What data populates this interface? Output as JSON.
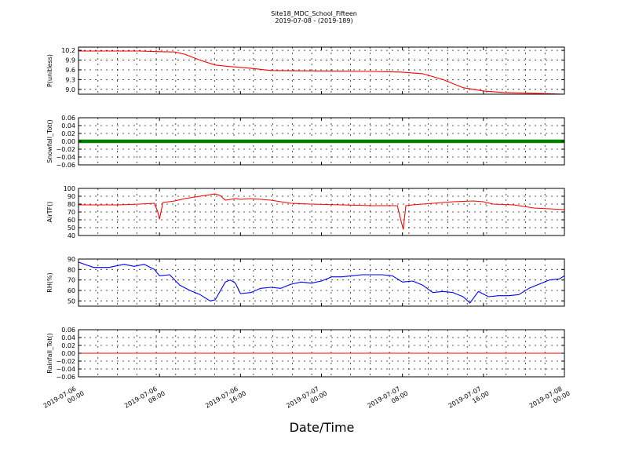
{
  "chart_data": {
    "type": "line",
    "title": "Site18_MDC_School_Fifteen",
    "subtitle": "2019-07-08 - (2019-189)",
    "xlabel": "Date/Time",
    "x_range": [
      "2019-07-06 00:00",
      "2019-07-08 00:00"
    ],
    "x_ticks": [
      {
        "value": "2019-07-06 00:00",
        "line1": "2019-07-06",
        "line2": "00:00"
      },
      {
        "value": "2019-07-06 08:00",
        "line1": "2019-07-06",
        "line2": "08:00"
      },
      {
        "value": "2019-07-06 16:00",
        "line1": "2019-07-06",
        "line2": "16:00"
      },
      {
        "value": "2019-07-07 00:00",
        "line1": "2019-07-07",
        "line2": "00:00"
      },
      {
        "value": "2019-07-07 08:00",
        "line1": "2019-07-07",
        "line2": "08:00"
      },
      {
        "value": "2019-07-07 16:00",
        "line1": "2019-07-07",
        "line2": "16:00"
      },
      {
        "value": "2019-07-08 00:00",
        "line1": "2019-07-08",
        "line2": "00:00"
      }
    ],
    "grid": true,
    "panels": [
      {
        "id": "p",
        "ylabel": "P(unitless)",
        "ylim": [
          8.85,
          10.3
        ],
        "yticks": [
          9.0,
          9.3,
          9.6,
          9.9,
          10.2
        ],
        "ytick_labels": [
          "9.0",
          "9.3",
          "9.6",
          "9.9",
          "10.2"
        ],
        "color": "#ff0000",
        "style": "line",
        "points": [
          [
            "2019-07-06 00:00",
            10.18
          ],
          [
            "2019-07-06 06:00",
            10.18
          ],
          [
            "2019-07-06 08:00",
            10.16
          ],
          [
            "2019-07-06 09:30",
            10.15
          ],
          [
            "2019-07-06 10:30",
            10.08
          ],
          [
            "2019-07-06 12:00",
            9.9
          ],
          [
            "2019-07-06 13:30",
            9.75
          ],
          [
            "2019-07-06 15:00",
            9.7
          ],
          [
            "2019-07-06 17:00",
            9.65
          ],
          [
            "2019-07-06 19:00",
            9.58
          ],
          [
            "2019-07-06 22:00",
            9.57
          ],
          [
            "2019-07-07 02:00",
            9.56
          ],
          [
            "2019-07-07 05:00",
            9.55
          ],
          [
            "2019-07-07 08:00",
            9.53
          ],
          [
            "2019-07-07 10:00",
            9.48
          ],
          [
            "2019-07-07 12:00",
            9.3
          ],
          [
            "2019-07-07 14:00",
            9.05
          ],
          [
            "2019-07-07 16:00",
            8.95
          ],
          [
            "2019-07-07 18:00",
            8.9
          ],
          [
            "2019-07-07 21:00",
            8.88
          ],
          [
            "2019-07-08 00:00",
            8.85
          ]
        ]
      },
      {
        "id": "snowfall",
        "ylabel": "Snowfall_Tot()",
        "ylim": [
          -0.06,
          0.06
        ],
        "yticks": [
          -0.06,
          -0.04,
          -0.02,
          0.0,
          0.02,
          0.04,
          0.06
        ],
        "ytick_labels": [
          "−0.06",
          "−0.04",
          "−0.02",
          "0.00",
          "0.02",
          "0.04",
          "0.06"
        ],
        "color": "#008000",
        "style": "thick",
        "points": [
          [
            "2019-07-06 00:00",
            0.0
          ],
          [
            "2019-07-08 00:00",
            0.0
          ]
        ]
      },
      {
        "id": "airtf",
        "ylabel": "AirTF()",
        "ylim": [
          40,
          100
        ],
        "yticks": [
          40,
          50,
          60,
          70,
          80,
          90,
          100
        ],
        "ytick_labels": [
          "40",
          "50",
          "60",
          "70",
          "80",
          "90",
          "100"
        ],
        "color": "#ff0000",
        "style": "line",
        "points": [
          [
            "2019-07-06 00:00",
            79
          ],
          [
            "2019-07-06 02:00",
            79
          ],
          [
            "2019-07-06 04:00",
            79
          ],
          [
            "2019-07-06 06:00",
            80
          ],
          [
            "2019-07-06 07:30",
            81
          ],
          [
            "2019-07-06 07:50",
            70
          ],
          [
            "2019-07-06 08:00",
            61
          ],
          [
            "2019-07-06 08:20",
            82
          ],
          [
            "2019-07-06 09:30",
            84
          ],
          [
            "2019-07-06 10:30",
            87
          ],
          [
            "2019-07-06 11:30",
            89
          ],
          [
            "2019-07-06 12:30",
            91
          ],
          [
            "2019-07-06 13:00",
            92
          ],
          [
            "2019-07-06 13:30",
            93
          ],
          [
            "2019-07-06 14:00",
            91
          ],
          [
            "2019-07-06 14:30",
            85
          ],
          [
            "2019-07-06 15:30",
            87
          ],
          [
            "2019-07-06 16:00",
            86
          ],
          [
            "2019-07-06 17:00",
            87
          ],
          [
            "2019-07-06 18:00",
            86
          ],
          [
            "2019-07-06 19:00",
            85
          ],
          [
            "2019-07-06 21:00",
            81
          ],
          [
            "2019-07-06 23:00",
            80
          ],
          [
            "2019-07-07 02:00",
            79
          ],
          [
            "2019-07-07 05:00",
            78
          ],
          [
            "2019-07-07 07:30",
            78
          ],
          [
            "2019-07-07 07:50",
            60
          ],
          [
            "2019-07-07 08:05",
            48
          ],
          [
            "2019-07-07 08:20",
            78
          ],
          [
            "2019-07-07 09:00",
            79
          ],
          [
            "2019-07-07 11:00",
            81
          ],
          [
            "2019-07-07 13:00",
            83
          ],
          [
            "2019-07-07 15:00",
            84
          ],
          [
            "2019-07-07 16:00",
            83
          ],
          [
            "2019-07-07 17:00",
            80
          ],
          [
            "2019-07-07 19:00",
            79
          ],
          [
            "2019-07-07 21:00",
            75
          ],
          [
            "2019-07-08 00:00",
            73
          ]
        ]
      },
      {
        "id": "rh",
        "ylabel": "RH(%)",
        "ylim": [
          45,
          90
        ],
        "yticks": [
          50,
          60,
          70,
          80,
          90
        ],
        "ytick_labels": [
          "50",
          "60",
          "70",
          "80",
          "90"
        ],
        "color": "#0000ff",
        "style": "line",
        "points": [
          [
            "2019-07-06 00:00",
            87
          ],
          [
            "2019-07-06 01:30",
            82
          ],
          [
            "2019-07-06 03:00",
            82
          ],
          [
            "2019-07-06 04:30",
            85
          ],
          [
            "2019-07-06 05:30",
            83
          ],
          [
            "2019-07-06 06:30",
            85
          ],
          [
            "2019-07-06 07:30",
            80
          ],
          [
            "2019-07-06 08:00",
            74
          ],
          [
            "2019-07-06 09:00",
            75
          ],
          [
            "2019-07-06 10:00",
            65
          ],
          [
            "2019-07-06 11:00",
            60
          ],
          [
            "2019-07-06 12:00",
            56
          ],
          [
            "2019-07-06 13:00",
            50
          ],
          [
            "2019-07-06 13:30",
            51
          ],
          [
            "2019-07-06 14:30",
            68
          ],
          [
            "2019-07-06 15:00",
            70
          ],
          [
            "2019-07-06 15:30",
            67
          ],
          [
            "2019-07-06 16:00",
            57
          ],
          [
            "2019-07-06 17:00",
            58
          ],
          [
            "2019-07-06 18:00",
            62
          ],
          [
            "2019-07-06 19:00",
            63
          ],
          [
            "2019-07-06 20:00",
            62
          ],
          [
            "2019-07-06 21:00",
            66
          ],
          [
            "2019-07-06 22:00",
            68
          ],
          [
            "2019-07-06 23:00",
            67
          ],
          [
            "2019-07-07 00:00",
            69
          ],
          [
            "2019-07-07 01:00",
            73
          ],
          [
            "2019-07-07 02:00",
            73
          ],
          [
            "2019-07-07 03:00",
            74
          ],
          [
            "2019-07-07 04:00",
            75
          ],
          [
            "2019-07-07 05:00",
            75
          ],
          [
            "2019-07-07 06:00",
            75
          ],
          [
            "2019-07-07 07:00",
            74
          ],
          [
            "2019-07-07 08:00",
            68
          ],
          [
            "2019-07-07 09:00",
            69
          ],
          [
            "2019-07-07 10:00",
            65
          ],
          [
            "2019-07-07 11:00",
            58
          ],
          [
            "2019-07-07 12:00",
            59
          ],
          [
            "2019-07-07 13:00",
            58
          ],
          [
            "2019-07-07 14:00",
            54
          ],
          [
            "2019-07-07 14:40",
            48
          ],
          [
            "2019-07-07 15:30",
            59
          ],
          [
            "2019-07-07 16:30",
            54
          ],
          [
            "2019-07-07 17:30",
            55
          ],
          [
            "2019-07-07 18:30",
            55
          ],
          [
            "2019-07-07 19:30",
            56
          ],
          [
            "2019-07-07 20:30",
            62
          ],
          [
            "2019-07-07 21:30",
            66
          ],
          [
            "2019-07-07 22:30",
            70
          ],
          [
            "2019-07-07 23:30",
            71
          ],
          [
            "2019-07-08 00:00",
            74
          ]
        ]
      },
      {
        "id": "rainfall",
        "ylabel": "Rainfall_Tot()",
        "ylim": [
          -0.06,
          0.06
        ],
        "yticks": [
          -0.06,
          -0.04,
          -0.02,
          0.0,
          0.02,
          0.04,
          0.06
        ],
        "ytick_labels": [
          "−0.06",
          "−0.04",
          "−0.02",
          "0.00",
          "0.02",
          "0.04",
          "0.06"
        ],
        "color": "#ff0000",
        "style": "line",
        "points": [
          [
            "2019-07-06 00:00",
            0.0
          ],
          [
            "2019-07-08 00:00",
            0.0
          ]
        ]
      }
    ]
  }
}
